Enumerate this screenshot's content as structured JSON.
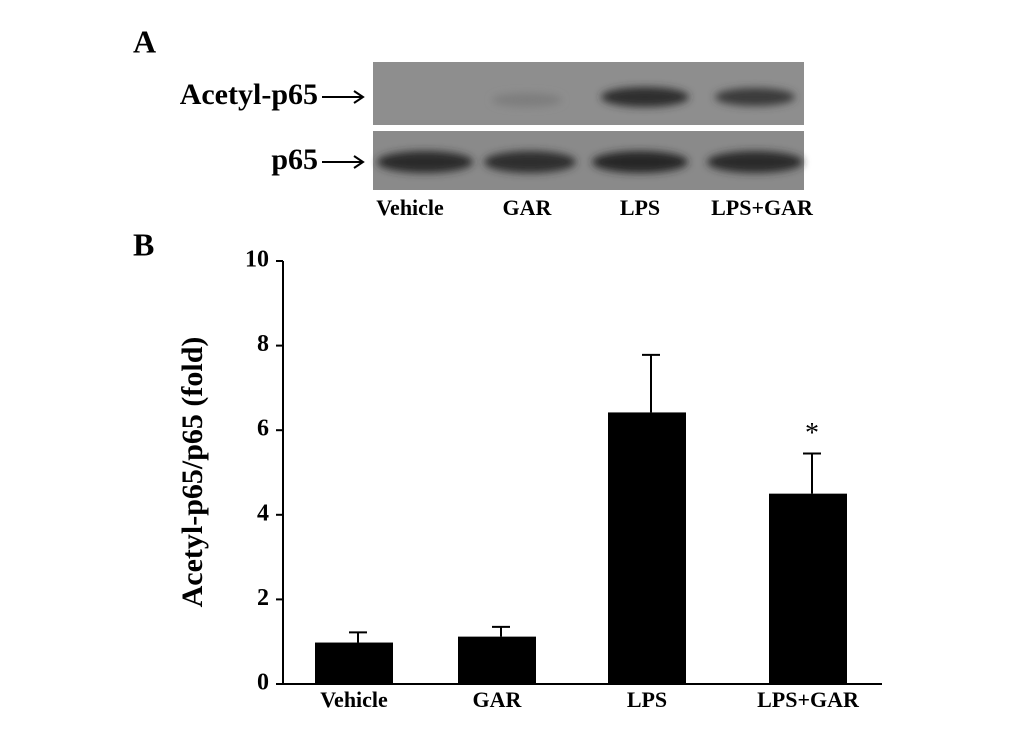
{
  "panel_a": {
    "label": "A",
    "rows": [
      "Acetyl-p65",
      "p65"
    ],
    "lanes": [
      "Vehicle",
      "GAR",
      "LPS",
      "LPS+GAR"
    ]
  },
  "chart_data": {
    "type": "bar",
    "panel_label": "B",
    "ylabel": "Acetyl-p65/p65 (fold)",
    "categories": [
      "Vehicle",
      "GAR",
      "LPS",
      "LPS+GAR"
    ],
    "values": [
      0.98,
      1.12,
      6.42,
      4.5
    ],
    "errors": [
      0.24,
      0.23,
      1.36,
      0.95
    ],
    "color": "#000000",
    "annotations": [
      {
        "category": "LPS+GAR",
        "text": "*"
      }
    ],
    "ylim": [
      0,
      10
    ],
    "yticks": [
      0,
      2,
      4,
      6,
      8,
      10
    ]
  }
}
